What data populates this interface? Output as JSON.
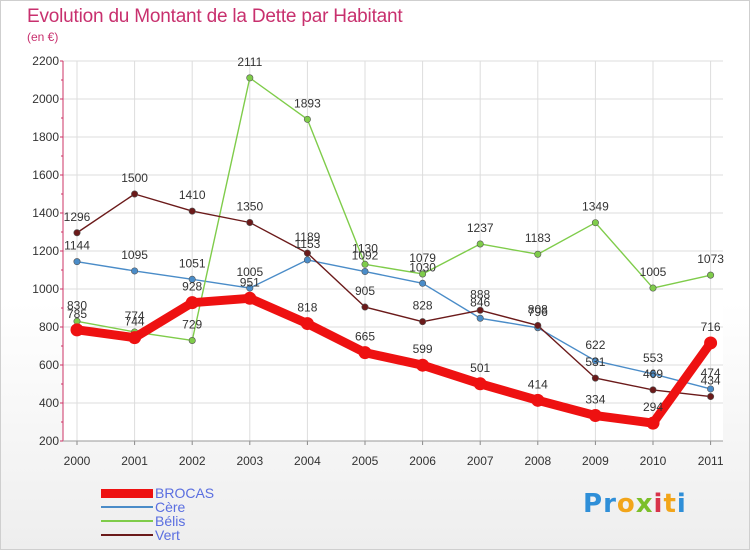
{
  "title": "Evolution du Montant de la Dette par Habitant",
  "subtitle": "(en €)",
  "brand": {
    "letters": [
      "P",
      "r",
      "o",
      "x",
      "i",
      "t",
      "i"
    ],
    "colors": [
      "#2f8fd8",
      "#2f8fd8",
      "#f2a51a",
      "#7cbf2a",
      "#d8334a",
      "#f2a51a",
      "#2f8fd8"
    ]
  },
  "chart_data": {
    "type": "line",
    "x": [
      "2000",
      "2001",
      "2002",
      "2003",
      "2004",
      "2005",
      "2006",
      "2007",
      "2008",
      "2009",
      "2010",
      "2011"
    ],
    "ylim": [
      200,
      2200
    ],
    "yticks": [
      "200",
      "400",
      "600",
      "800",
      "1000",
      "1200",
      "1400",
      "1600",
      "1800",
      "2000",
      "2200"
    ],
    "grid": true,
    "legend_position": "bottom-left",
    "series": [
      {
        "name": "BROCAS",
        "color": "#ee1111",
        "values": [
          785,
          744,
          928,
          951,
          818,
          665,
          599,
          501,
          414,
          334,
          294,
          716
        ],
        "labels": [
          "785",
          "744",
          "928",
          "951",
          "818",
          "665",
          "599",
          "501",
          "414",
          "334",
          "294",
          "716"
        ]
      },
      {
        "name": "Cère",
        "color": "#4a8cc8",
        "values": [
          1144,
          1095,
          1051,
          1005,
          1153,
          1092,
          1030,
          846,
          796,
          622,
          553,
          474
        ],
        "labels": [
          "1144",
          "1095",
          "1051",
          "1005",
          "1153",
          "1092",
          "1030",
          "846",
          "796",
          "622",
          "553",
          "474"
        ]
      },
      {
        "name": "Bélis",
        "color": "#7fcc4a",
        "values": [
          830,
          774,
          729,
          2111,
          1893,
          1130,
          1079,
          1237,
          1183,
          1349,
          1005,
          1073
        ],
        "labels": [
          "830",
          "774",
          "729",
          "2111",
          "1893",
          "1130",
          "1079",
          "1237",
          "1183",
          "1349",
          "1005",
          "1073"
        ]
      },
      {
        "name": "Vert",
        "color": "#6b1a1a",
        "values": [
          1296,
          1500,
          1410,
          1350,
          1189,
          905,
          828,
          888,
          808,
          531,
          469,
          434
        ],
        "labels": [
          "1296",
          "1500",
          "1410",
          "1350",
          "1189",
          "905",
          "828",
          "888",
          "808",
          "531",
          "469",
          "434"
        ]
      }
    ]
  }
}
